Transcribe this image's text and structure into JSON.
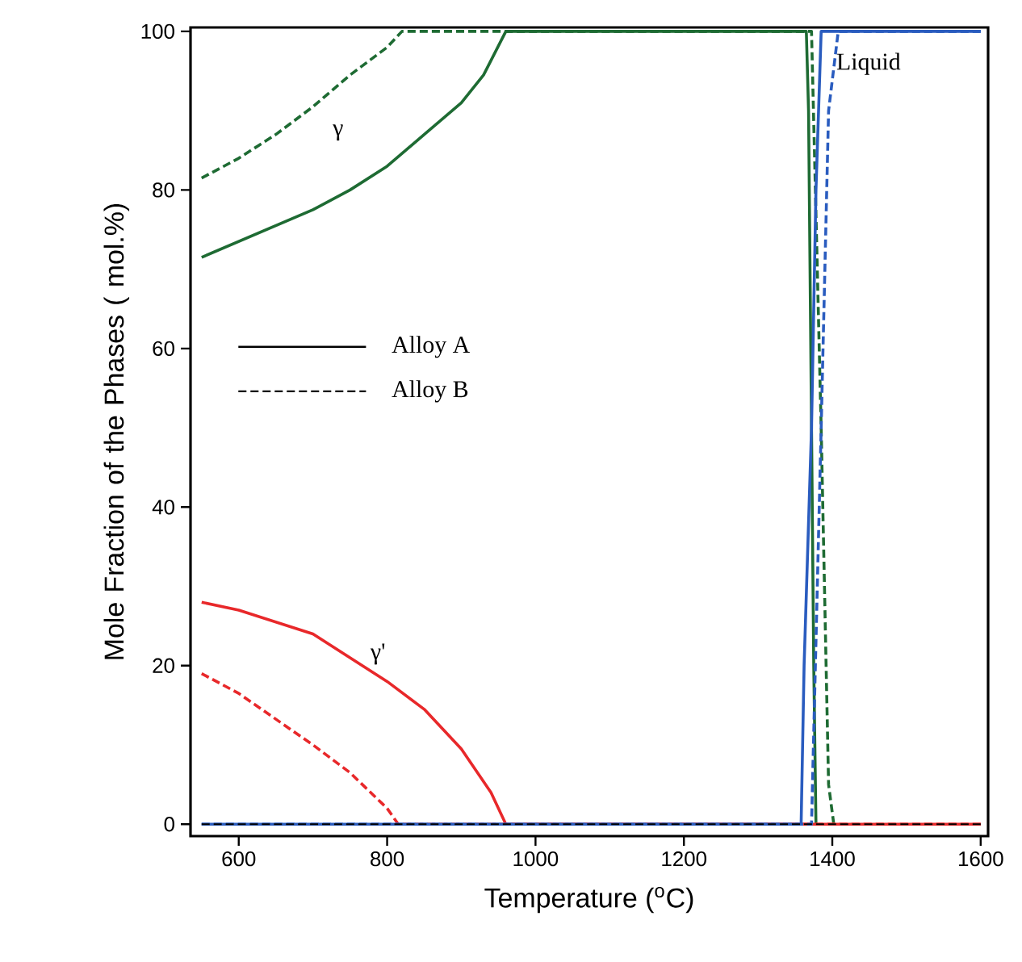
{
  "chart_data": {
    "type": "line",
    "xlabel": "Temperature ($^{o}$C)",
    "ylabel": "Mole Fraction of the Phases ( mol.%)",
    "xlim": [
      535,
      1610
    ],
    "ylim": [
      -1.5,
      100.5
    ],
    "xticks": [
      600,
      800,
      1000,
      1200,
      1400,
      1600
    ],
    "yticks": [
      0,
      20,
      40,
      60,
      80,
      100
    ],
    "series": [
      {
        "color": "#1e6b33",
        "line_style": "solid",
        "x": [
          550,
          600,
          650,
          700,
          750,
          800,
          850,
          900,
          930,
          960,
          1365,
          1368,
          1372,
          1375,
          1378
        ],
        "values": [
          71.5,
          73.5,
          75.5,
          77.5,
          80,
          83,
          87,
          91,
          94.5,
          100,
          100,
          90,
          50,
          20,
          0
        ]
      },
      {
        "color": "#1e6b33",
        "line_style": "dashed",
        "x": [
          550,
          600,
          650,
          700,
          750,
          800,
          820,
          1372,
          1385,
          1395,
          1402
        ],
        "values": [
          81.5,
          84,
          87,
          90.5,
          94.5,
          98,
          100,
          100,
          50,
          5,
          0
        ]
      },
      {
        "color": "#e8282a",
        "line_style": "solid",
        "x": [
          550,
          600,
          700,
          800,
          850,
          900,
          940,
          960,
          1600
        ],
        "values": [
          28,
          27,
          24,
          18,
          14.5,
          9.5,
          4,
          0,
          0
        ]
      },
      {
        "color": "#e8282a",
        "line_style": "dashed",
        "x": [
          550,
          600,
          700,
          750,
          800,
          815,
          1600
        ],
        "values": [
          19,
          16.5,
          10,
          6.5,
          2,
          0,
          0
        ]
      },
      {
        "color": "#2a5cbf",
        "line_style": "solid",
        "x": [
          550,
          1358,
          1362,
          1372,
          1378,
          1385,
          1600
        ],
        "values": [
          0,
          0,
          20,
          50,
          80,
          100,
          100
        ]
      },
      {
        "color": "#2a5cbf",
        "line_style": "dashed",
        "x": [
          550,
          1372,
          1385,
          1395,
          1408,
          1600
        ],
        "values": [
          0,
          0,
          50,
          90,
          100,
          100
        ]
      },
      {
        "color": "#000000",
        "line_style": "dashed",
        "x": [
          550,
          1600
        ],
        "values": [
          0,
          0
        ]
      }
    ],
    "annotations": [
      "γ",
      "γ'",
      "Liquid",
      "Alloy A",
      "Alloy B"
    ]
  }
}
